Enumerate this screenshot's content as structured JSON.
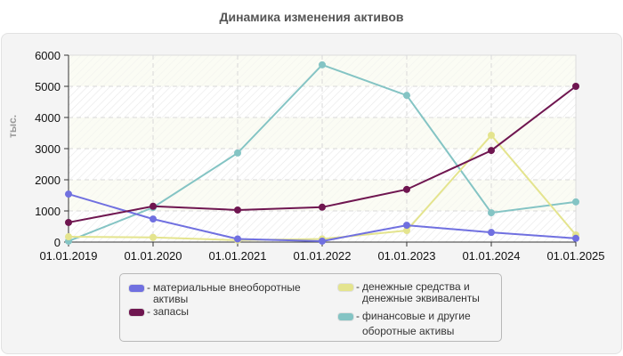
{
  "title": "Динамика изменения активов",
  "y_axis_title": "тыс.",
  "legend": [
    {
      "label_lines": [
        "материальные внеоборотные",
        "активы"
      ],
      "color": "#7070e0"
    },
    {
      "label_lines": [
        "запасы"
      ],
      "color": "#6f1650"
    },
    {
      "label_lines": [
        "денежные средства и",
        "денежные эквиваленты"
      ],
      "color": "#e4e48e"
    },
    {
      "label_lines": [
        "финансовые и другие",
        "оборотные активы"
      ],
      "color": "#84c4c4"
    }
  ],
  "chart_data": {
    "type": "line",
    "title": "Динамика изменения активов",
    "xlabel": "",
    "ylabel": "тыс.",
    "ylim": [
      0,
      6000
    ],
    "yticks": [
      0,
      1000,
      2000,
      3000,
      4000,
      5000,
      6000
    ],
    "grid": true,
    "legend_position": "bottom",
    "categories": [
      "01.01.2019",
      "01.01.2020",
      "01.01.2021",
      "01.01.2022",
      "01.01.2023",
      "01.01.2024",
      "01.01.2025"
    ],
    "series": [
      {
        "name": "материальные внеоборотные активы",
        "color": "#7070e0",
        "values": [
          1540,
          740,
          100,
          30,
          540,
          310,
          120
        ]
      },
      {
        "name": "запасы",
        "color": "#6f1650",
        "values": [
          630,
          1150,
          1030,
          1120,
          1690,
          2940,
          5000
        ]
      },
      {
        "name": "денежные средства и денежные эквиваленты",
        "color": "#e4e48e",
        "values": [
          170,
          150,
          60,
          100,
          370,
          3430,
          230
        ]
      },
      {
        "name": "финансовые и другие оборотные активы",
        "color": "#84c4c4",
        "values": [
          30,
          1110,
          2860,
          5690,
          4710,
          940,
          1290
        ]
      }
    ]
  }
}
